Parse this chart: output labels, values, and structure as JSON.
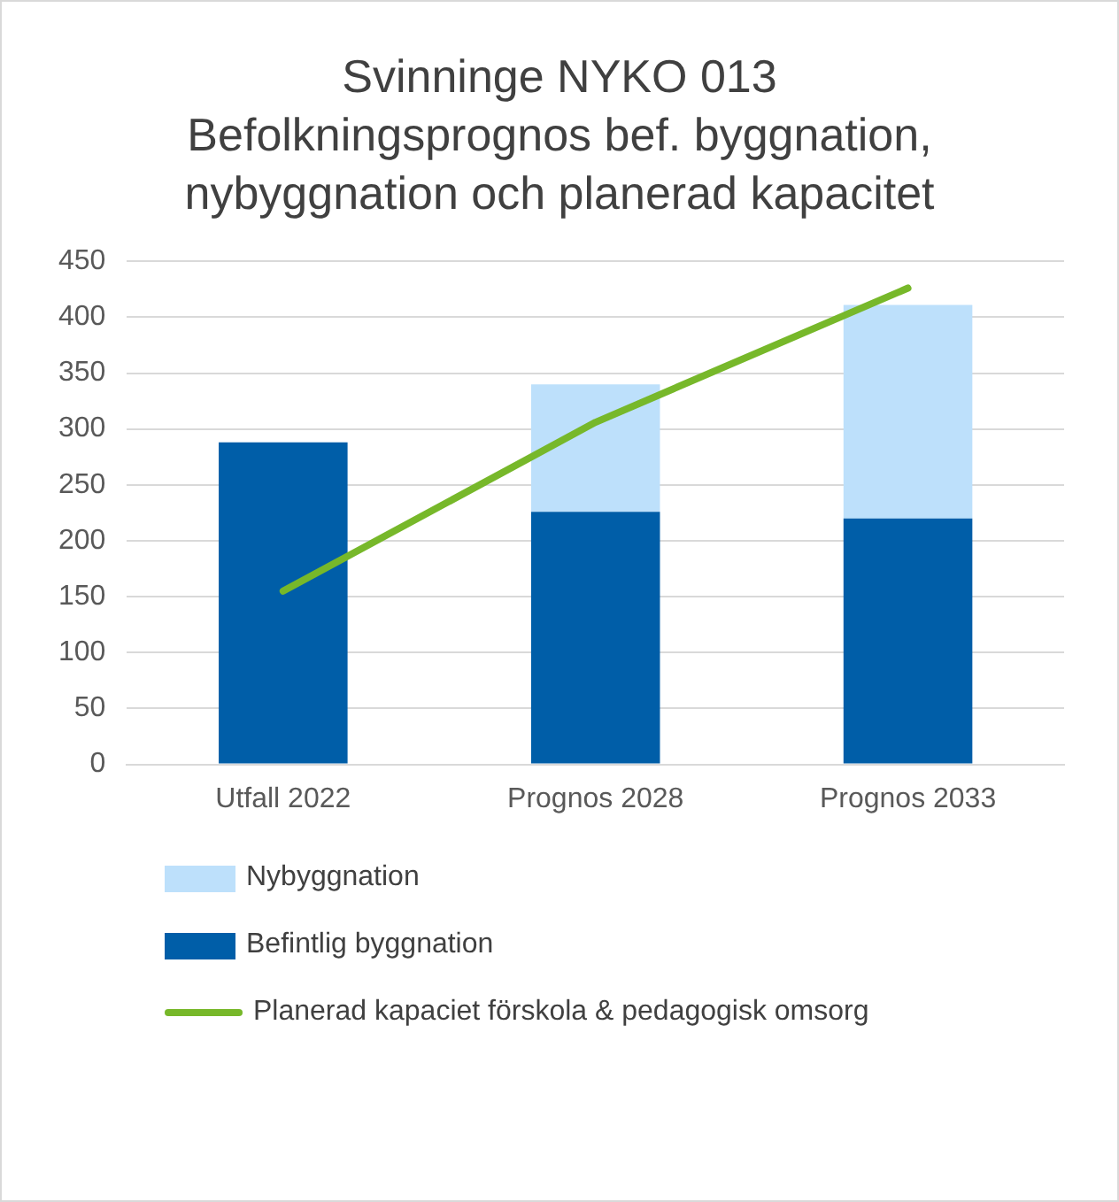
{
  "chart_data": {
    "type": "bar",
    "title": "Svinninge NYKO 013 Befolkningsprognos bef. byggnation, nybyggnation och planerad kapacitet",
    "categories": [
      "Utfall 2022",
      "Prognos 2028",
      "Prognos 2033"
    ],
    "stacked": true,
    "series": [
      {
        "name": "Befintlig byggnation",
        "color": "#005ea8",
        "values": [
          288,
          226,
          220
        ]
      },
      {
        "name": "Nybyggnation",
        "color": "#bde0fb",
        "values": [
          null,
          114,
          191
        ]
      },
      {
        "name": "Planerad kapaciet förskola & pedagogisk omsorg",
        "type": "line",
        "color": "#77b82a",
        "values": [
          155,
          306,
          426
        ]
      }
    ],
    "ylim": [
      0,
      450
    ],
    "yticks": [
      0,
      50,
      100,
      150,
      200,
      250,
      300,
      350,
      400,
      450
    ],
    "grid": "y",
    "legend": "bottom",
    "marker": "none"
  }
}
